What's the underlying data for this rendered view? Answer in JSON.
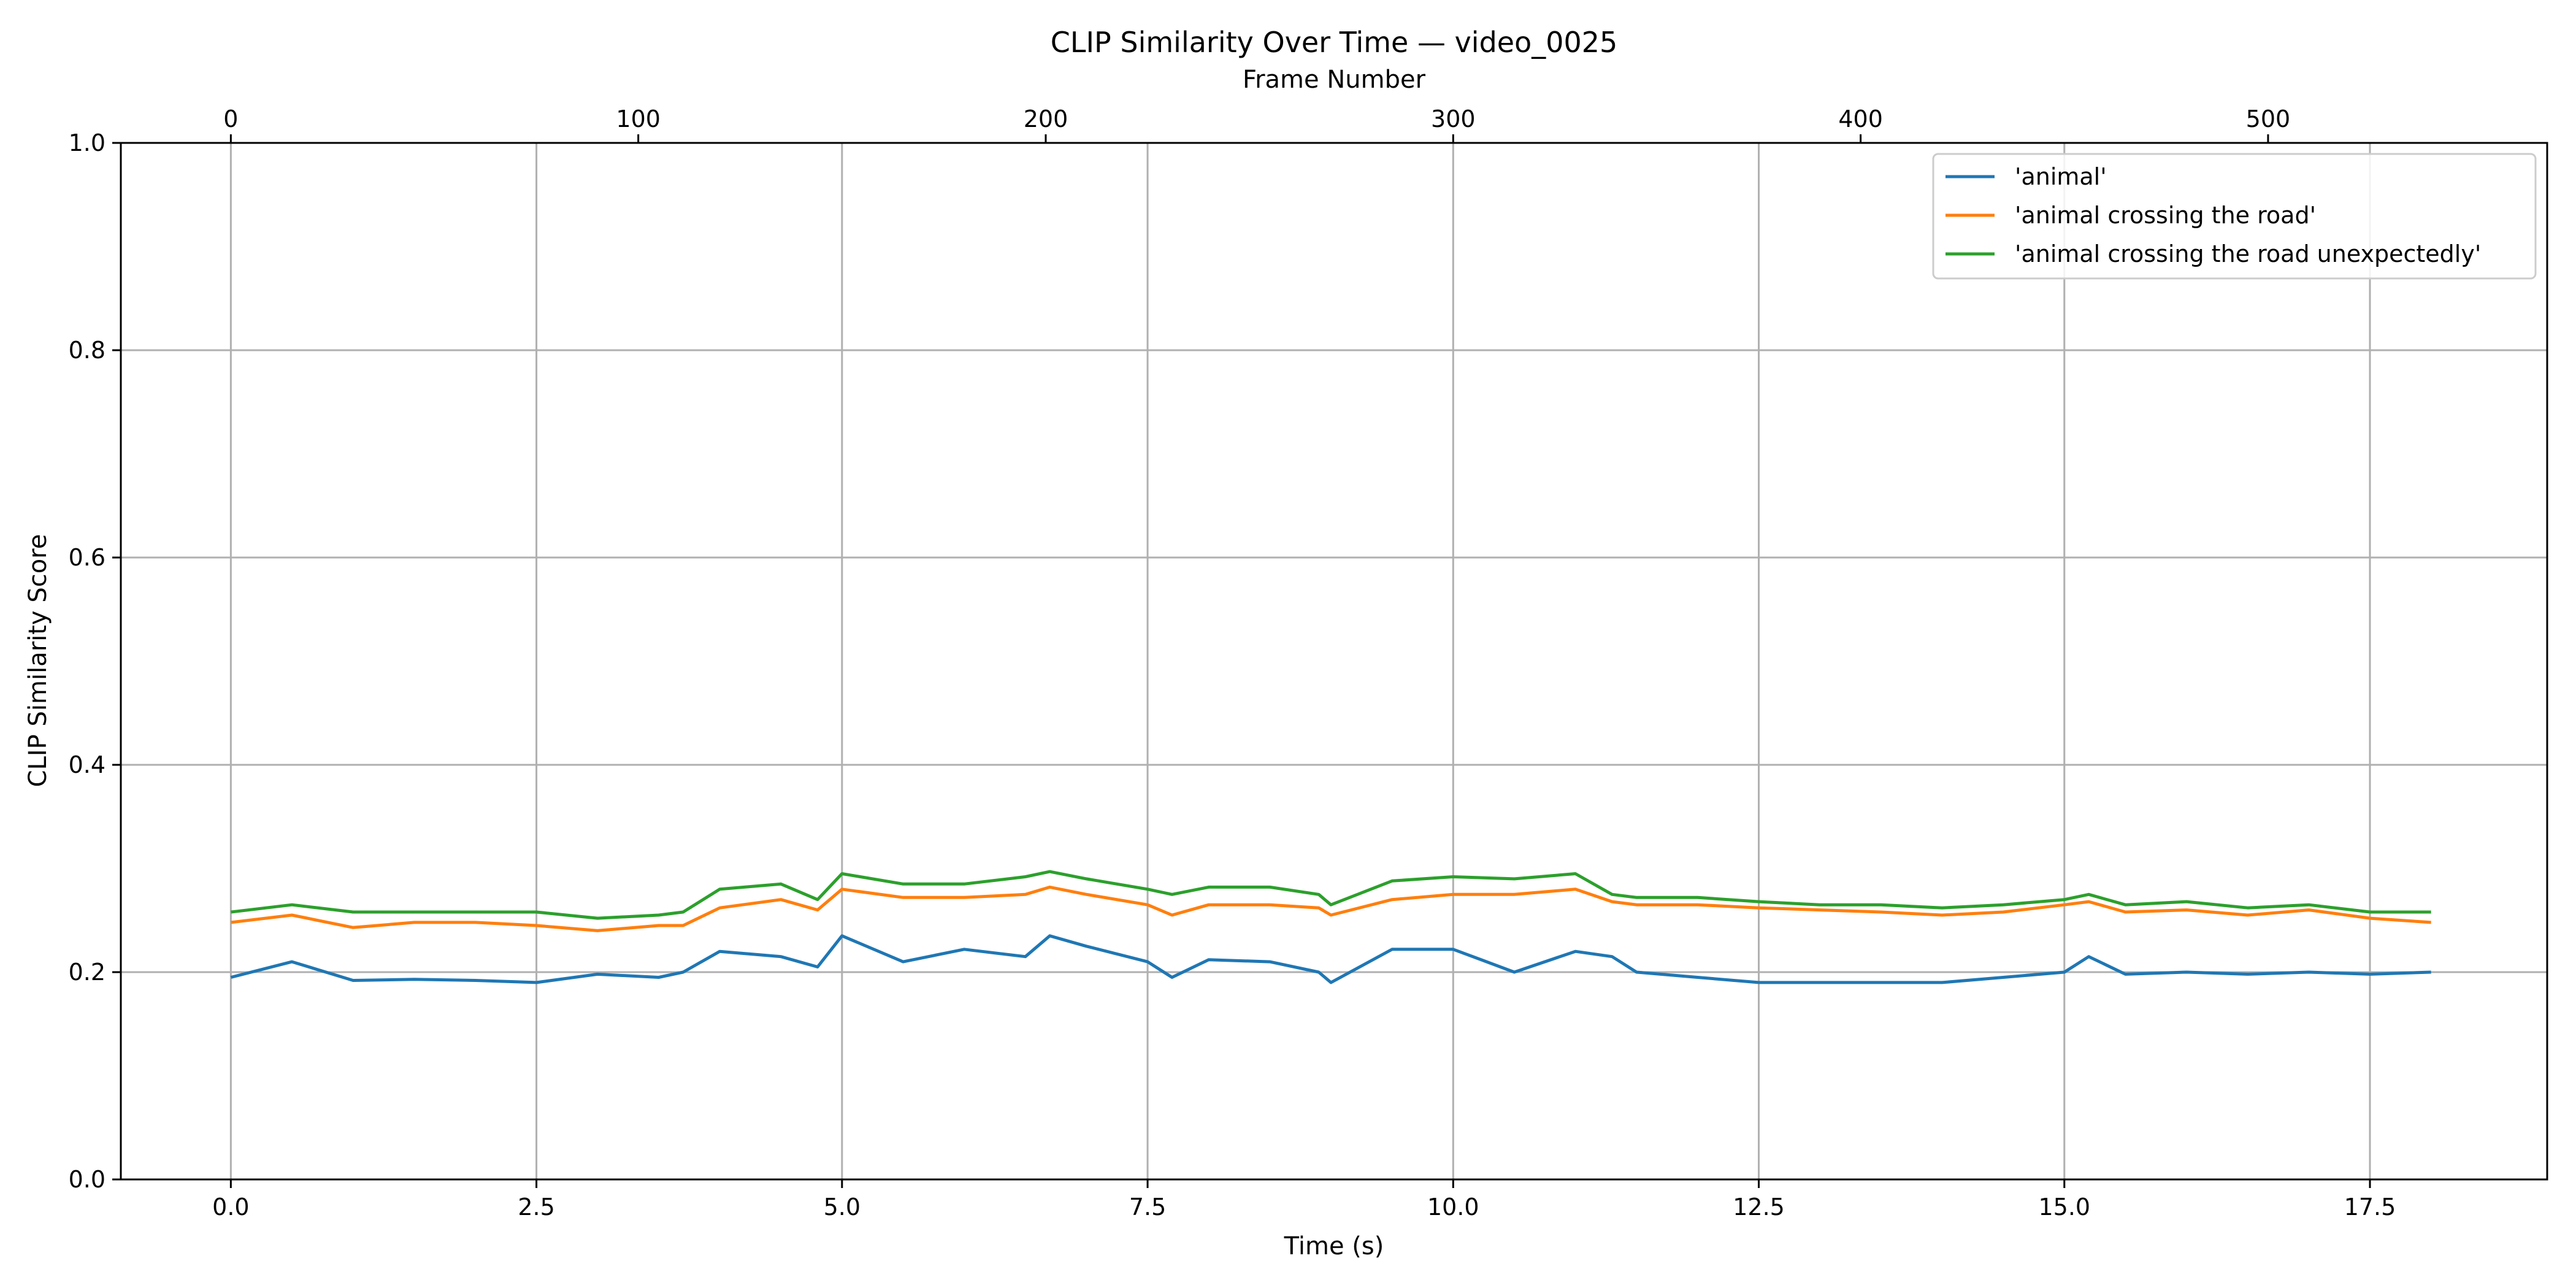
{
  "chart_data": {
    "type": "line",
    "title": "CLIP Similarity Over Time — video_0025",
    "xlabel": "Time (s)",
    "ylabel": "CLIP Similarity Score",
    "x2label": "Frame Number",
    "xlim": [
      -0.9,
      18.95
    ],
    "ylim": [
      0.0,
      1.0
    ],
    "fps": 30,
    "xticks": [
      0.0,
      2.5,
      5.0,
      7.5,
      10.0,
      12.5,
      15.0,
      17.5
    ],
    "xtick_labels": [
      "0.0",
      "2.5",
      "5.0",
      "7.5",
      "10.0",
      "12.5",
      "15.0",
      "17.5"
    ],
    "yticks": [
      0.0,
      0.2,
      0.4,
      0.6,
      0.8,
      1.0
    ],
    "ytick_labels": [
      "0.0",
      "0.2",
      "0.4",
      "0.6",
      "0.8",
      "1.0"
    ],
    "x2ticks": [
      0,
      100,
      200,
      300,
      400,
      500
    ],
    "x2tick_labels": [
      "0",
      "100",
      "200",
      "300",
      "400",
      "500"
    ],
    "grid": true,
    "legend_position": "top-right",
    "x": [
      0.0,
      0.5,
      1.0,
      1.5,
      2.0,
      2.5,
      3.0,
      3.5,
      3.7,
      4.0,
      4.5,
      4.8,
      5.0,
      5.5,
      6.0,
      6.5,
      6.7,
      7.0,
      7.5,
      7.7,
      8.0,
      8.5,
      8.9,
      9.0,
      9.5,
      10.0,
      10.5,
      11.0,
      11.3,
      11.5,
      12.0,
      12.5,
      13.0,
      13.5,
      14.0,
      14.5,
      15.0,
      15.2,
      15.5,
      16.0,
      16.5,
      17.0,
      17.5,
      18.0
    ],
    "series": [
      {
        "name": "'animal'",
        "color": "#1f77b4",
        "values": [
          0.195,
          0.21,
          0.192,
          0.193,
          0.192,
          0.19,
          0.198,
          0.195,
          0.2,
          0.22,
          0.215,
          0.205,
          0.235,
          0.21,
          0.222,
          0.215,
          0.235,
          0.225,
          0.21,
          0.195,
          0.212,
          0.21,
          0.2,
          0.19,
          0.222,
          0.222,
          0.2,
          0.22,
          0.215,
          0.2,
          0.195,
          0.19,
          0.19,
          0.19,
          0.19,
          0.195,
          0.2,
          0.215,
          0.198,
          0.2,
          0.198,
          0.2,
          0.198,
          0.2
        ]
      },
      {
        "name": "'animal crossing the road'",
        "color": "#ff7f0e",
        "values": [
          0.248,
          0.255,
          0.243,
          0.248,
          0.248,
          0.245,
          0.24,
          0.245,
          0.245,
          0.262,
          0.27,
          0.26,
          0.28,
          0.272,
          0.272,
          0.275,
          0.282,
          0.275,
          0.265,
          0.255,
          0.265,
          0.265,
          0.262,
          0.255,
          0.27,
          0.275,
          0.275,
          0.28,
          0.268,
          0.265,
          0.265,
          0.262,
          0.26,
          0.258,
          0.255,
          0.258,
          0.265,
          0.268,
          0.258,
          0.26,
          0.255,
          0.26,
          0.252,
          0.248
        ]
      },
      {
        "name": "'animal crossing the road unexpectedly'",
        "color": "#2ca02c",
        "values": [
          0.258,
          0.265,
          0.258,
          0.258,
          0.258,
          0.258,
          0.252,
          0.255,
          0.258,
          0.28,
          0.285,
          0.27,
          0.295,
          0.285,
          0.285,
          0.292,
          0.297,
          0.29,
          0.28,
          0.275,
          0.282,
          0.282,
          0.275,
          0.265,
          0.288,
          0.292,
          0.29,
          0.295,
          0.275,
          0.272,
          0.272,
          0.268,
          0.265,
          0.265,
          0.262,
          0.265,
          0.27,
          0.275,
          0.265,
          0.268,
          0.262,
          0.265,
          0.258,
          0.258
        ]
      }
    ]
  }
}
